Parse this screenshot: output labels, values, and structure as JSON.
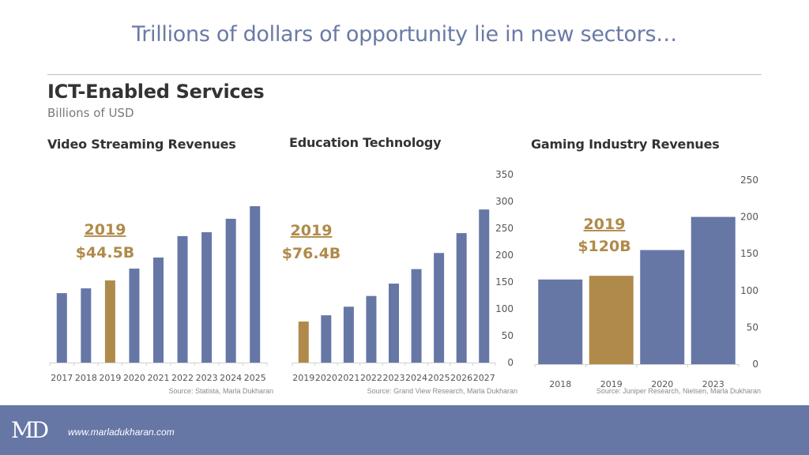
{
  "slide": {
    "title": "Trillions of dollars of opportunity lie in new sectors…",
    "section_title": "ICT-Enabled Services",
    "section_subtitle": "Billions of USD",
    "footer": {
      "logo": "MD",
      "website": "www.marladukharan.com"
    }
  },
  "colors": {
    "bar": "#6677a6",
    "highlight": "#b08a4a",
    "title": "#6a7aa6"
  },
  "chart_data": [
    {
      "type": "bar",
      "title": "Video Streaming Revenues",
      "categories": [
        "2017",
        "2018",
        "2019",
        "2020",
        "2021",
        "2022",
        "2023",
        "2024",
        "2025"
      ],
      "values": [
        37.6,
        40.2,
        44.5,
        50.9,
        56.9,
        68.5,
        70.6,
        77.9,
        84.7
      ],
      "highlight_index": 2,
      "annotation": {
        "year": "2019",
        "value": "$44.5B"
      },
      "ylim": [
        0,
        100
      ],
      "y_axis_shown": false,
      "yticks": [],
      "source": "Source: Statista, Marla Dukharan",
      "xlabel": "",
      "ylabel": ""
    },
    {
      "type": "bar",
      "title": "Education Technology",
      "categories": [
        "2019",
        "2020",
        "2021",
        "2022",
        "2023",
        "2024",
        "2025",
        "2026",
        "2027"
      ],
      "values": [
        76.4,
        88,
        104,
        124,
        147,
        174,
        204,
        241,
        285
      ],
      "highlight_index": 0,
      "annotation": {
        "year": "2019",
        "value": "$76.4B"
      },
      "ylim": [
        0,
        350
      ],
      "y_axis_shown": true,
      "yticks": [
        0,
        50,
        100,
        150,
        200,
        250,
        300,
        350
      ],
      "source": "Source: Grand View Research, Marla Dukharan",
      "xlabel": "",
      "ylabel": ""
    },
    {
      "type": "bar",
      "title": "Gaming Industry Revenues",
      "categories": [
        "2018",
        "2019",
        "2020",
        "2023"
      ],
      "values": [
        115,
        120,
        155,
        200
      ],
      "highlight_index": 1,
      "annotation": {
        "year": "2019",
        "value": "$120B"
      },
      "ylim": [
        0,
        250
      ],
      "y_axis_shown": true,
      "yticks": [
        0,
        50,
        100,
        150,
        200,
        250
      ],
      "source": "Source: Juniper Research, Nielsen, Marla Dukharan",
      "xlabel": "",
      "ylabel": ""
    }
  ]
}
